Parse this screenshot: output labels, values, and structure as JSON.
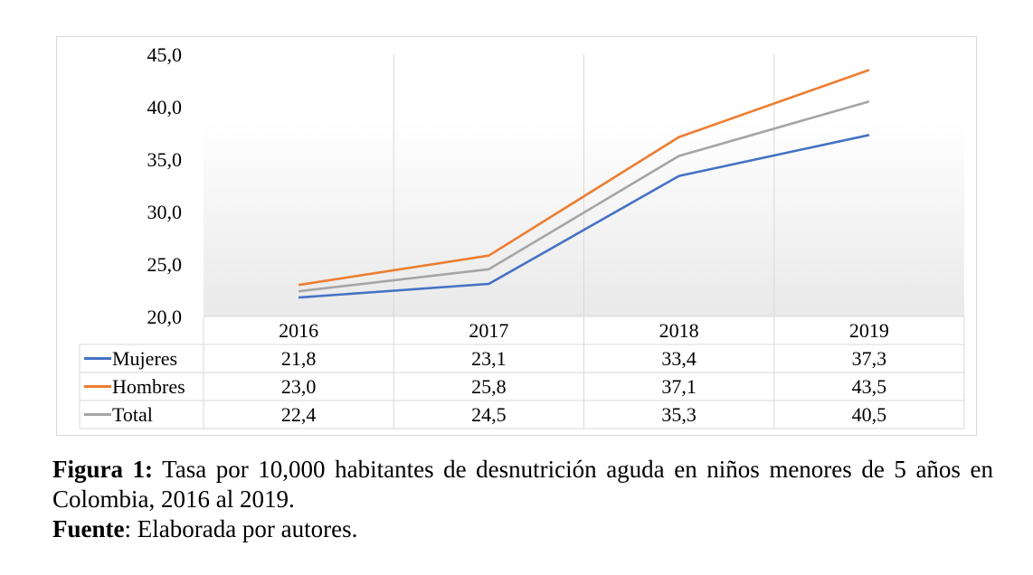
{
  "chart_data": {
    "type": "line",
    "categories": [
      "2016",
      "2017",
      "2018",
      "2019"
    ],
    "series": [
      {
        "name": "Mujeres",
        "values": [
          21.8,
          23.1,
          33.4,
          37.3
        ],
        "color": "#4472c4",
        "labels": [
          "21,8",
          "23,1",
          "33,4",
          "37,3"
        ]
      },
      {
        "name": "Hombres",
        "values": [
          23.0,
          25.8,
          37.1,
          43.5
        ],
        "color": "#ed7d31",
        "labels": [
          "23,0",
          "25,8",
          "37,1",
          "43,5"
        ]
      },
      {
        "name": "Total",
        "values": [
          22.4,
          24.5,
          35.3,
          40.5
        ],
        "color": "#a5a5a5",
        "labels": [
          "22,4",
          "24,5",
          "35,3",
          "40,5"
        ]
      }
    ],
    "ylim": [
      20,
      45
    ],
    "ytick_values": [
      20,
      25,
      30,
      35,
      40,
      45
    ],
    "ytick_labels": [
      "20,0",
      "25,0",
      "30,0",
      "35,0",
      "40,0",
      "45,0"
    ],
    "data_table": true,
    "legend": "data-table-rows"
  },
  "caption": {
    "figure_label": "Figura 1:",
    "figure_text": " Tasa por 10,000 habitantes de desnutrición aguda en niños menores de 5 años en Colombia, 2016 al 2019.",
    "source_label": "Fuente",
    "source_text": ": Elaborada por autores."
  }
}
